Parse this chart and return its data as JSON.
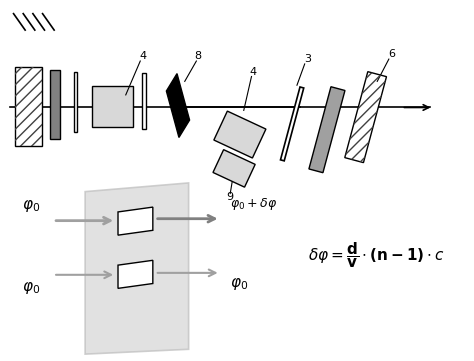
{
  "bg_color": "#ffffff",
  "gray_dark": "#808080",
  "gray_light": "#c0c0c0",
  "gray_medium": "#a0a0a0",
  "light_gray_fill": "#d8d8d8",
  "hatch_color": "#404040"
}
